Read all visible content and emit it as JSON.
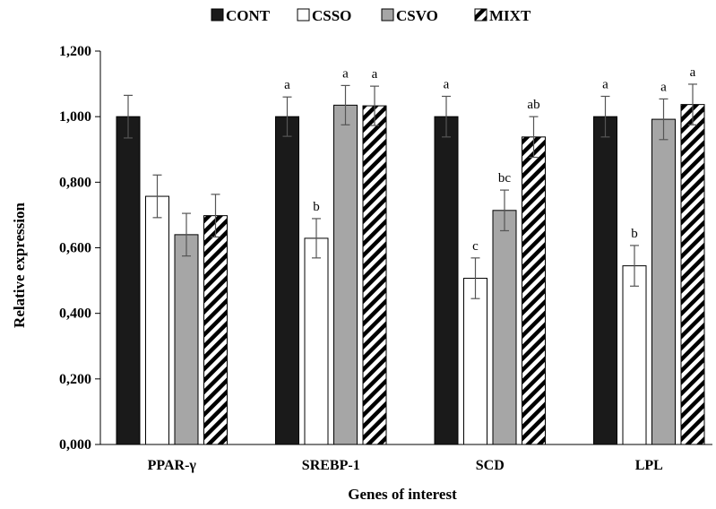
{
  "chart_data": {
    "type": "bar",
    "xlabel": "Genes of interest",
    "ylabel": "Relative expression",
    "ylim": [
      0,
      1.2
    ],
    "yticks": [
      0,
      0.2,
      0.4,
      0.6,
      0.8,
      1.0,
      1.2
    ],
    "ytick_labels": [
      "0,000",
      "0,200",
      "0,400",
      "0,600",
      "0,800",
      "1,000",
      "1,200"
    ],
    "categories": [
      "PPAR-γ",
      "SREBP-1",
      "SCD",
      "LPL"
    ],
    "legend_position": "top",
    "grid": false,
    "series": [
      {
        "name": "CONT",
        "fill": "solid",
        "color": "#1a1a1a",
        "values": [
          1.0,
          1.0,
          1.0,
          1.0
        ],
        "errors": [
          0.065,
          0.06,
          0.062,
          0.062
        ],
        "letters": [
          "",
          "a",
          "a",
          "a"
        ]
      },
      {
        "name": "CSSO",
        "fill": "white",
        "color": "#ffffff",
        "values": [
          0.757,
          0.629,
          0.507,
          0.545
        ],
        "errors": [
          0.065,
          0.06,
          0.062,
          0.062
        ],
        "letters": [
          "",
          "b",
          "c",
          "b"
        ]
      },
      {
        "name": "CSVO",
        "fill": "grey",
        "color": "#a6a6a6",
        "values": [
          0.64,
          1.035,
          0.714,
          0.992
        ],
        "errors": [
          0.065,
          0.06,
          0.062,
          0.062
        ],
        "letters": [
          "",
          "a",
          "bc",
          "a"
        ]
      },
      {
        "name": "MIXT",
        "fill": "stripes",
        "color": "#000000",
        "values": [
          0.698,
          1.033,
          0.938,
          1.037
        ],
        "errors": [
          0.065,
          0.06,
          0.062,
          0.062
        ],
        "letters": [
          "",
          "a",
          "ab",
          "a"
        ]
      }
    ]
  }
}
